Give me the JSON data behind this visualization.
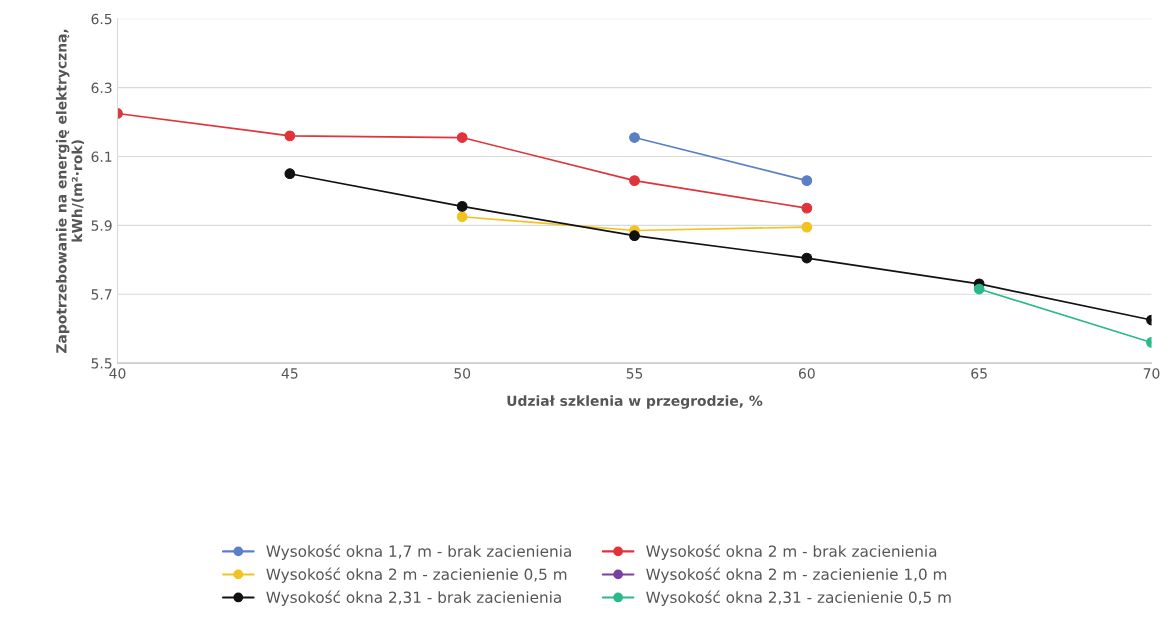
{
  "chart_data": {
    "type": "line",
    "xlabel": "Udział szklenia w przegrodzie, %",
    "ylabel": "Zapotrzebowanie na energię elektryczną,\nkWh/(m²·rok)",
    "x": [
      40,
      45,
      50,
      55,
      60,
      65,
      70
    ],
    "series": [
      {
        "name": "Wysokość okna 1,7 m - brak zacienienia",
        "color": "#5b7fc4",
        "values": [
          null,
          null,
          null,
          6.155,
          6.03,
          null,
          null
        ]
      },
      {
        "name": "Wysokość okna 2 m - brak zacienienia",
        "color": "#e0333a",
        "values": [
          6.225,
          6.16,
          6.155,
          6.03,
          5.95,
          null,
          null
        ]
      },
      {
        "name": "Wysokość okna 2 m - zacienienie 0,5 m",
        "color": "#f2c320",
        "values": [
          null,
          null,
          5.925,
          5.885,
          5.895,
          null,
          null
        ]
      },
      {
        "name": "Wysokość okna 2 m - zacienienie 1,0 m",
        "color": "#7a3fa0",
        "values": [
          null,
          null,
          null,
          null,
          null,
          null,
          null
        ]
      },
      {
        "name": "Wysokość okna 2,31 - brak zacienienia",
        "color": "#111111",
        "values": [
          null,
          6.05,
          5.955,
          5.87,
          5.805,
          5.73,
          5.625
        ]
      },
      {
        "name": "Wysokość okna 2,31 - zacienienie 0,5 m",
        "color": "#2bb88a",
        "values": [
          null,
          null,
          null,
          null,
          null,
          5.715,
          5.56
        ]
      }
    ],
    "xlim": [
      40,
      70
    ],
    "xticks": [
      40,
      45,
      50,
      55,
      60,
      65,
      70
    ],
    "ylim": [
      5.5,
      6.5
    ],
    "yticks": [
      5.5,
      5.7,
      5.9,
      6.1,
      6.3,
      6.5
    ],
    "grid": "y",
    "legend": "bottom",
    "marker": "circle",
    "line_style": "solid"
  }
}
